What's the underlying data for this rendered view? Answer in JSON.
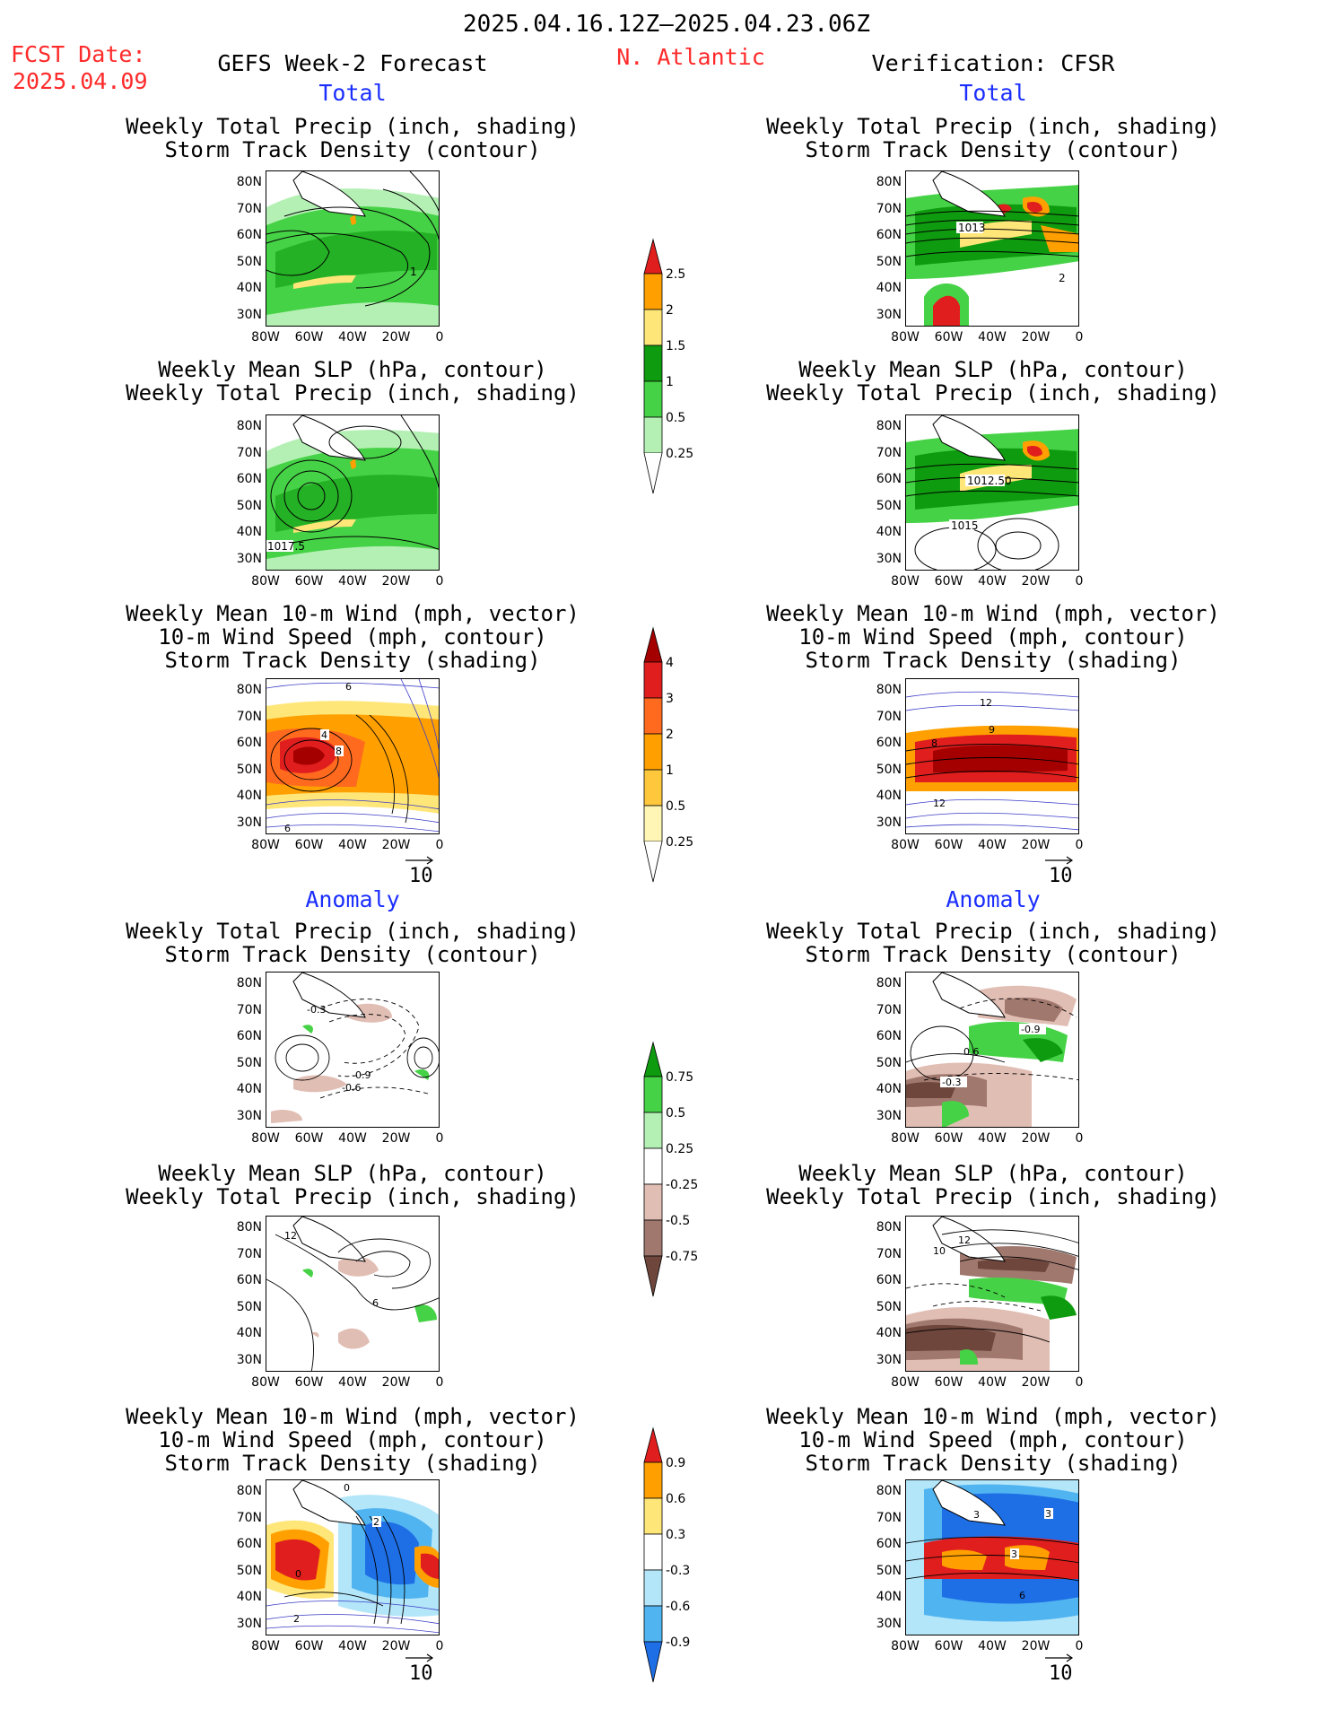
{
  "header": {
    "date_range": "2025.04.16.12Z–2025.04.23.06Z",
    "fcst_label": "FCST Date:",
    "fcst_date": "2025.04.09",
    "forecast_title": "GEFS Week-2 Forecast",
    "region": "N. Atlantic",
    "verification": "Verification: CFSR"
  },
  "sections": {
    "total": "Total",
    "anomaly": "Anomaly"
  },
  "titles": {
    "precip_storm": "Weekly Total Precip (inch, shading)\nStorm Track Density (contour)",
    "slp_precip": "Weekly Mean SLP (hPa, contour)\nWeekly Total Precip (inch, shading)",
    "wind_storm": "Weekly Mean 10-m Wind (mph, vector)\n10-m Wind Speed (mph, contour)\nStorm Track Density (shading)"
  },
  "axes": {
    "lat_ticks": [
      "80N",
      "70N",
      "60N",
      "50N",
      "40N",
      "30N"
    ],
    "lon_ticks": [
      "80W",
      "60W",
      "40W",
      "20W",
      "0"
    ]
  },
  "vector_ref": "10",
  "colorbars": {
    "precip_total": [
      "2.5",
      "2",
      "1.5",
      "1",
      "0.5",
      "0.25"
    ],
    "storm_total": [
      "4",
      "3",
      "2",
      "1",
      "0.5",
      "0.25"
    ],
    "precip_anom": [
      "0.75",
      "0.5",
      "0.25",
      "-0.25",
      "-0.5",
      "-0.75"
    ],
    "storm_anom": [
      "0.9",
      "0.6",
      "0.3",
      "-0.3",
      "-0.6",
      "-0.9"
    ]
  },
  "contour_labels": {
    "l1": "1",
    "l2": "1013",
    "l3": "2",
    "l4": "1017.5",
    "l5": "1012.50",
    "l6": "1015",
    "l7": "6",
    "l8": "4",
    "l9": "8",
    "l10": "6",
    "l11": "12",
    "l12": "8",
    "l13": "9",
    "l14": "12",
    "l15": "-0.3",
    "l16": "-0.9",
    "l17": "-0.6",
    "l18": "-0.9",
    "l19": "0.6",
    "l20": "-0.3",
    "l21": "12",
    "l22": "6",
    "l23": "12",
    "l24": "10",
    "l25": "0",
    "l26": "2",
    "l27": "0",
    "l28": "2",
    "l29": "3",
    "l30": "3",
    "l31": "3",
    "l32": "6"
  },
  "colors": {
    "green_light": "#b4f0b4",
    "green_mid": "#46d246",
    "green_dark": "#0f9b0f",
    "yellow": "#ffe678",
    "orange": "#ffa000",
    "red": "#e11e1e",
    "dark_red": "#a50000",
    "brown_light": "#e1beb4",
    "brown_mid": "#a0786e",
    "brown_dark": "#6e463c",
    "blue_light": "#b4e6fa",
    "blue_mid": "#50b4f0",
    "blue_dark": "#1e6ee6",
    "wind_contour": "#3c3cc8"
  }
}
